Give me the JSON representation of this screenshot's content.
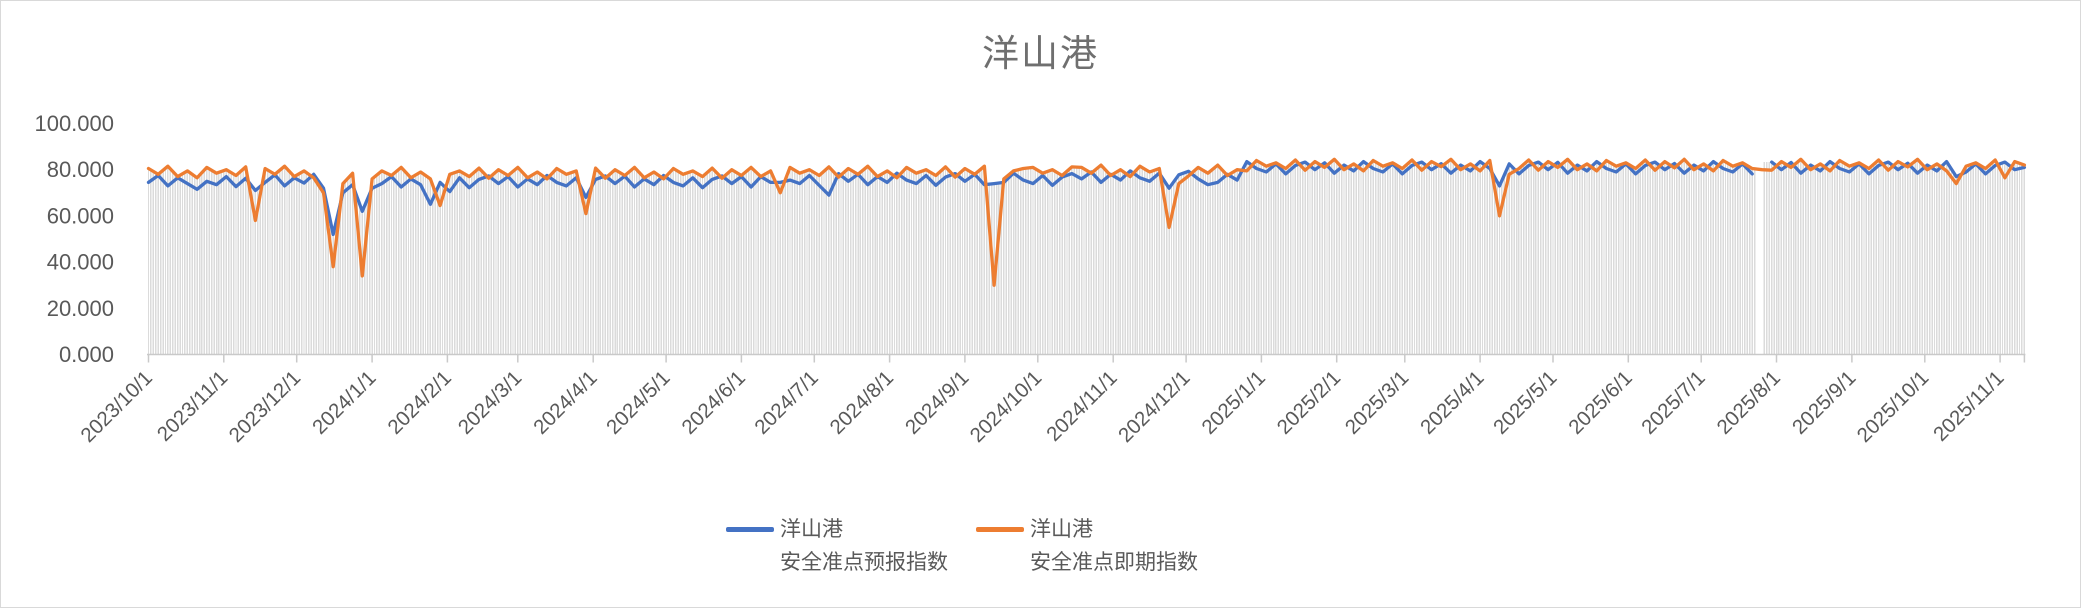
{
  "title": "洋山港",
  "colors": {
    "forecast_line": "#4472C4",
    "spot_line": "#ED7D31",
    "drop_lines": "#DBDBDB",
    "axis": "#C9C9C9",
    "axis_text": "#595959",
    "title_text": "#6F6F6F"
  },
  "legend": {
    "items": [
      {
        "line1": "洋山港",
        "line2": "安全准点预报指数",
        "color": "#4472C4"
      },
      {
        "line1": "洋山港",
        "line2": "安全准点即期指数",
        "color": "#ED7D31"
      }
    ]
  },
  "chart_data": {
    "type": "line",
    "title": "洋山港",
    "x_start_date": "2023/10/1",
    "x_end_date": "2025/11/11",
    "x_sample_step_days": 4,
    "ylim": [
      0,
      100
    ],
    "grid": "none",
    "legend_position": "bottom",
    "y_ticks": {
      "labels": [
        "100.000",
        "80.000",
        "60.000",
        "40.000",
        "20.000",
        "0.000"
      ],
      "values": [
        100,
        80,
        60,
        40,
        20,
        0
      ]
    },
    "x_ticks": {
      "labels": [
        "2023/10/1",
        "2023/11/1",
        "2023/12/1",
        "2024/1/1",
        "2024/2/1",
        "2024/3/1",
        "2024/4/1",
        "2024/5/1",
        "2024/6/1",
        "2024/7/1",
        "2024/8/1",
        "2024/9/1",
        "2024/10/1",
        "2024/11/1",
        "2024/12/1",
        "2025/1/1",
        "2025/2/1",
        "2025/3/1",
        "2025/4/1",
        "2025/5/1",
        "2025/6/1",
        "2025/7/1",
        "2025/8/1",
        "2025/9/1",
        "2025/10/1",
        "2025/11/1"
      ],
      "day_offsets": [
        0,
        31,
        61,
        92,
        123,
        152,
        183,
        213,
        244,
        274,
        305,
        336,
        366,
        397,
        427,
        458,
        489,
        517,
        548,
        578,
        609,
        639,
        670,
        701,
        731,
        762
      ]
    },
    "gap": {
      "around_date": "2025/7/25",
      "skip_stripe_days": [
        662,
        663,
        664
      ],
      "note": "short blank interval with no data"
    },
    "drop_lines_to_axis": true,
    "notable_dips": [
      {
        "date": "2023/11/14",
        "series": "即期",
        "value": 58
      },
      {
        "date": "2023/12/16",
        "series": "即期",
        "value": 38
      },
      {
        "date": "2023/12/16",
        "series": "预报",
        "value": 52
      },
      {
        "date": "2023/12/28",
        "series": "即期",
        "value": 34
      },
      {
        "date": "2023/12/28",
        "series": "预报",
        "value": 62
      },
      {
        "date": "2024/1/25",
        "series": "预报",
        "value": 65
      },
      {
        "date": "2024/1/31",
        "series": "即期",
        "value": 64.5
      },
      {
        "date": "2024/3/29",
        "series": "即期",
        "value": 61
      },
      {
        "date": "2024/9/13",
        "series": "即期",
        "value": 30
      },
      {
        "date": "2024/11/24",
        "series": "即期",
        "value": 55
      },
      {
        "date": "2025/4/9",
        "series": "即期",
        "value": 60
      },
      {
        "date": "2025/10/14",
        "series": "即期",
        "value": 74
      }
    ],
    "series": [
      {
        "name": "洋山港安全准点预报指数",
        "color": "#4472C4",
        "values": [
          74.5,
          77.5,
          73,
          76.5,
          74,
          71.5,
          75,
          73.5,
          77,
          72.7,
          76.3,
          71,
          74.5,
          77.8,
          73,
          76.5,
          74.2,
          78,
          72,
          52,
          70,
          73.5,
          62,
          72,
          74,
          77,
          72.5,
          76,
          73.5,
          65,
          74.5,
          70.5,
          76.5,
          72.2,
          75.8,
          77.3,
          74,
          77,
          72.5,
          76,
          73.5,
          77.5,
          74.5,
          73,
          76.5,
          68,
          75.8,
          77.3,
          74,
          77.2,
          72.5,
          76,
          73.5,
          77.5,
          74.5,
          73,
          76.5,
          72.2,
          75.8,
          77.3,
          74,
          77,
          72.5,
          77,
          74.5,
          74.5,
          75.5,
          74,
          77.5,
          73.2,
          69,
          78.3,
          75,
          78,
          73.5,
          77,
          74.5,
          78.5,
          75.5,
          74,
          77.5,
          73.2,
          76.8,
          78.3,
          75,
          78,
          73.5,
          74,
          74.5,
          78.5,
          75.5,
          74,
          77.5,
          73.2,
          76.8,
          78.3,
          76,
          79,
          74.5,
          78,
          75.5,
          79.5,
          76.5,
          75,
          78.5,
          72,
          77.8,
          79.3,
          76,
          73.5,
          74.5,
          78,
          75.5,
          83.5,
          80.5,
          79,
          82.5,
          78.2,
          81.8,
          83.3,
          80,
          83,
          78.5,
          82,
          79.5,
          83.5,
          80.5,
          79,
          82.5,
          78.2,
          81.8,
          83.3,
          80,
          82.6,
          78.5,
          82,
          79.5,
          83.5,
          80.5,
          73,
          82.5,
          78.2,
          81.8,
          83.3,
          80,
          83.2,
          78.5,
          82,
          79.5,
          83.5,
          80.5,
          79,
          82.5,
          78.2,
          81.8,
          83.3,
          80,
          82.7,
          78.5,
          82,
          79.5,
          83.5,
          80.5,
          79,
          82.5,
          78.2,
          null,
          83.3,
          80,
          83.1,
          78.5,
          82,
          79.5,
          83.5,
          80.5,
          79,
          82.5,
          78.2,
          81.8,
          83.3,
          80,
          82.8,
          78.5,
          82,
          79.5,
          83.5,
          77,
          79,
          82.5,
          78.2,
          81.8,
          83.3,
          80,
          81
        ]
      },
      {
        "name": "洋山港安全准点即期指数",
        "color": "#ED7D31",
        "values": [
          80.5,
          78,
          81.5,
          77,
          79.5,
          76.5,
          81,
          78.5,
          80,
          77.5,
          81.2,
          58,
          80.5,
          78,
          81.5,
          77,
          79.5,
          76.5,
          70,
          38,
          74,
          78.5,
          34,
          76,
          79.5,
          77.5,
          81,
          76.5,
          79,
          76,
          64.5,
          78,
          79.5,
          77,
          80.7,
          76.3,
          80,
          77.5,
          81,
          76.5,
          79,
          76,
          80.5,
          78,
          79.5,
          61,
          80.7,
          76.3,
          80,
          77.5,
          81,
          76.5,
          79,
          76,
          80.5,
          78,
          79.5,
          77,
          80.7,
          76.3,
          80,
          77.5,
          81,
          77,
          79.5,
          70,
          81,
          78.5,
          80,
          77.5,
          81.2,
          76.8,
          80.5,
          78,
          81.5,
          77,
          79.5,
          76.5,
          81,
          78.5,
          80,
          77.5,
          81.2,
          76.8,
          80.5,
          78,
          81.5,
          30,
          76,
          79.5,
          80.5,
          81,
          78.5,
          80,
          77.5,
          81.2,
          81,
          78.5,
          82,
          77.5,
          80,
          77,
          81.5,
          79,
          80.5,
          55,
          74,
          77.3,
          81,
          78.5,
          82,
          77.5,
          80,
          79.5,
          84,
          81.5,
          83,
          80.5,
          84.2,
          79.8,
          83.5,
          81,
          84.5,
          80,
          82.5,
          79.5,
          84,
          81.5,
          83,
          80.5,
          84.2,
          79.8,
          83.5,
          81.3,
          84.5,
          80,
          82.5,
          79.5,
          84,
          60,
          78,
          80.5,
          84.2,
          79.8,
          83.5,
          81,
          84.5,
          80,
          82.5,
          79.5,
          84,
          81.5,
          83,
          80.5,
          84.2,
          79.8,
          83.5,
          80.8,
          84.5,
          80,
          82.5,
          79.5,
          84,
          81.5,
          83,
          80.5,
          80,
          79.8,
          83.5,
          81,
          84.5,
          80,
          82.5,
          79.5,
          84,
          81.5,
          83,
          80.5,
          84.2,
          79.8,
          83.5,
          81.2,
          84.5,
          80,
          82.5,
          79.5,
          74,
          81.5,
          83,
          80.5,
          84.2,
          76.5,
          83.5,
          82
        ]
      }
    ]
  }
}
